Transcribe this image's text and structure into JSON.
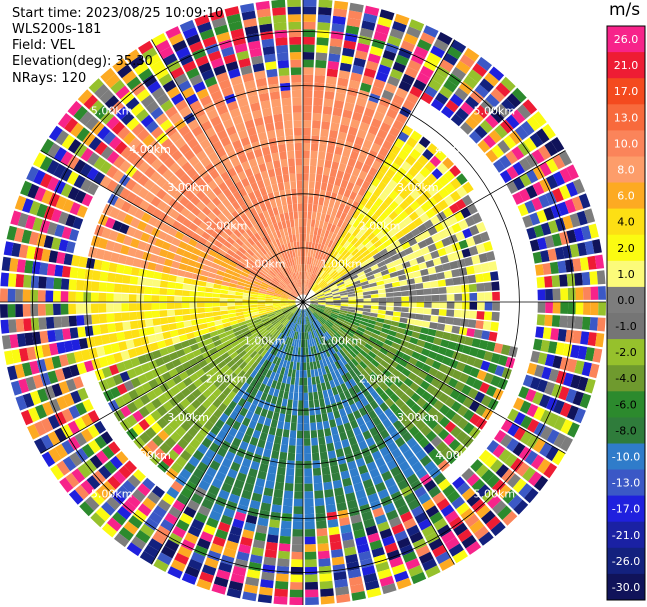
{
  "header": {
    "start_time": "Start time: 2023/08/25 10:09:10",
    "instrument": "WLS200s-181",
    "field": "Field: VEL",
    "elevation": "Elevation(deg): 35.30",
    "nrays": "NRays: 120"
  },
  "colorbar": {
    "unit": "m/s",
    "ticks": [
      "26.0",
      "21.0",
      "17.0",
      "13.0",
      "10.0",
      "8.0",
      "6.0",
      "4.0",
      "2.0",
      "1.0",
      "0.0",
      "-1.0",
      "-2.0",
      "-4.0",
      "-6.0",
      "-8.0",
      "-10.0",
      "-13.0",
      "-17.0",
      "-21.0",
      "-26.0",
      "-30.0"
    ],
    "colors": [
      "#f7238a",
      "#ee1c34",
      "#f44a1e",
      "#f86a3c",
      "#fb845a",
      "#fd9d6a",
      "#fdaa22",
      "#fddf14",
      "#fbfb11",
      "#fcfb7a",
      "#7d7d7d",
      "#757575",
      "#96c12c",
      "#6f9a2e",
      "#2c8a2d",
      "#2f7c3b",
      "#2f7cca",
      "#3b58c6",
      "#1f20de",
      "#1a21a3",
      "#13217e",
      "#10135a"
    ]
  },
  "chart_data": {
    "type": "ppi",
    "title": "",
    "field": "VEL",
    "unit": "m/s",
    "nrays": 120,
    "elevation_deg": 35.3,
    "range_rings_km": [
      1.0,
      2.0,
      3.0,
      4.0,
      5.0
    ],
    "range_ring_labels": [
      "1.00km",
      "2.00km",
      "3.00km",
      "4.00km",
      "5.00km"
    ],
    "max_range_km": 5.6,
    "spokes_deg": [
      0,
      30,
      60,
      90,
      120,
      150,
      180,
      210,
      240,
      270,
      300,
      330
    ],
    "velocity_regions": [
      {
        "description": "north / north-west sector",
        "azimuth_deg": [
          300,
          30
        ],
        "range_km": [
          0.2,
          4.4
        ],
        "velocity_ms": 8.0
      },
      {
        "description": "north-east sector",
        "azimuth_deg": [
          30,
          55
        ],
        "range_km": [
          0.3,
          3.8
        ],
        "velocity_ms": 2.0
      },
      {
        "description": "east sector",
        "azimuth_deg": [
          55,
          100
        ],
        "range_km": [
          0.2,
          3.6
        ],
        "velocity_ms": 0.0
      },
      {
        "description": "east-south-east sector",
        "azimuth_deg": [
          100,
          140
        ],
        "range_km": [
          0.2,
          4.0
        ],
        "velocity_ms": -6.0
      },
      {
        "description": "south sector",
        "azimuth_deg": [
          140,
          215
        ],
        "range_km": [
          0.2,
          4.4
        ],
        "velocity_ms": -10.0
      },
      {
        "description": "south-west sector",
        "azimuth_deg": [
          215,
          250
        ],
        "range_km": [
          0.2,
          4.0
        ],
        "velocity_ms": -4.0
      },
      {
        "description": "west sector",
        "azimuth_deg": [
          250,
          280
        ],
        "range_km": [
          0.2,
          4.4
        ],
        "velocity_ms": 2.0
      },
      {
        "description": "west-north-west sector",
        "azimuth_deg": [
          280,
          300
        ],
        "range_km": [
          0.2,
          4.0
        ],
        "velocity_ms": 6.0
      },
      {
        "description": "outer noise band",
        "azimuth_deg": [
          0,
          360
        ],
        "range_km": [
          4.4,
          5.6
        ],
        "velocity_ms": null
      }
    ]
  }
}
